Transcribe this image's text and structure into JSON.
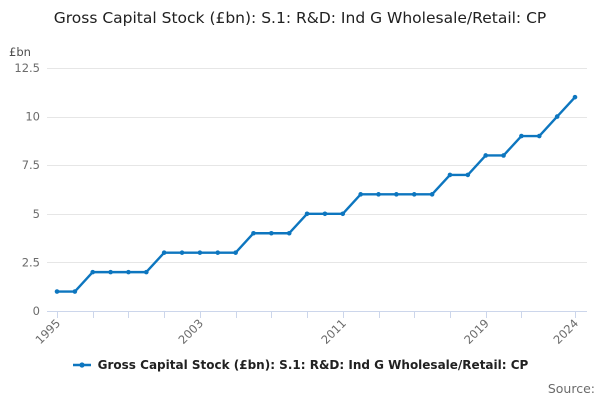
{
  "title": "Gross Capital Stock (£bn): S.1: R&D: Ind G Wholesale/Retail: CP",
  "y_axis": {
    "unit_label": "£bn",
    "ticks": [
      0,
      2.5,
      5,
      7.5,
      10,
      12.5
    ],
    "range": [
      0,
      12.5
    ]
  },
  "x_axis": {
    "labeled_ticks": [
      1995,
      2003,
      2011,
      2019,
      2024
    ],
    "minor_tick_interval_years": 2,
    "range": [
      1995,
      2024
    ]
  },
  "legend": {
    "label": "Gross Capital Stock (£bn): S.1: R&D: Ind G Wholesale/Retail: CP"
  },
  "source_label": "Source:",
  "colors": {
    "line": "#0d76bf",
    "grid": "#e6e6e6",
    "axis": "#ccd6eb",
    "tick_text": "#6b6b6b",
    "title_text": "#212121"
  },
  "chart_data": {
    "type": "line",
    "title": "Gross Capital Stock (£bn): S.1: R&D: Ind G Wholesale/Retail: CP",
    "xlabel": "",
    "ylabel": "£bn",
    "ylim": [
      0,
      12.5
    ],
    "grid": true,
    "legend_position": "bottom",
    "marker": "circle",
    "x": [
      1995,
      1996,
      1997,
      1998,
      1999,
      2000,
      2001,
      2002,
      2003,
      2004,
      2005,
      2006,
      2007,
      2008,
      2009,
      2010,
      2011,
      2012,
      2013,
      2014,
      2015,
      2016,
      2017,
      2018,
      2019,
      2020,
      2021,
      2022,
      2023,
      2024
    ],
    "series": [
      {
        "name": "Gross Capital Stock (£bn): S.1: R&D: Ind G Wholesale/Retail: CP",
        "values": [
          1,
          1,
          2,
          2,
          2,
          2,
          3,
          3,
          3,
          3,
          3,
          4,
          4,
          4,
          5,
          5,
          5,
          6,
          6,
          6,
          6,
          6,
          7,
          7,
          8,
          8,
          9,
          9,
          10,
          11
        ]
      }
    ]
  }
}
